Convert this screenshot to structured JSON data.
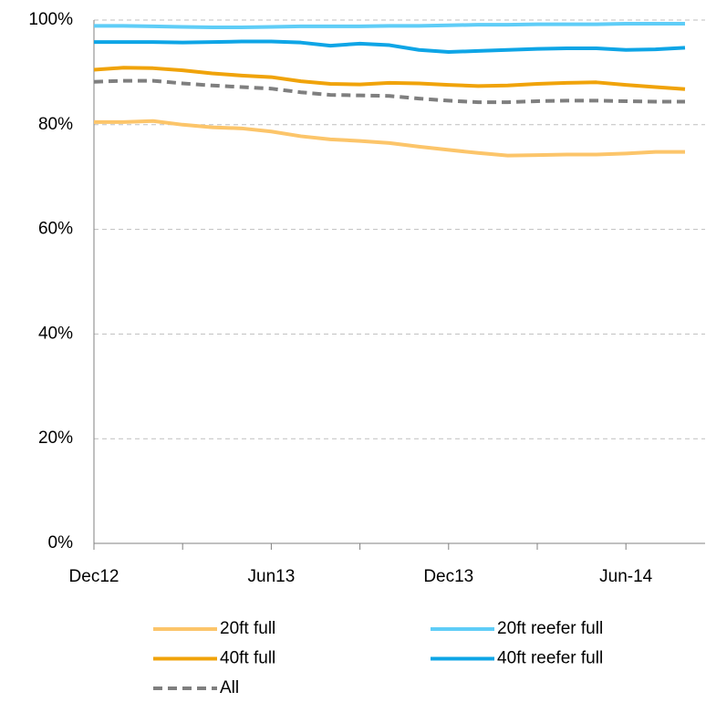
{
  "chart_data": {
    "type": "line",
    "categories": [
      "Dec12",
      null,
      null,
      null,
      null,
      null,
      "Jun13",
      null,
      null,
      null,
      null,
      null,
      "Dec13",
      null,
      null,
      null,
      null,
      null,
      "Jun-14",
      null,
      null
    ],
    "series": [
      {
        "name": "20ft full",
        "color": "#fcc56a",
        "dash": false,
        "values": [
          80.5,
          80.5,
          80.7,
          80,
          79.5,
          79.3,
          78.7,
          77.8,
          77.2,
          76.9,
          76.5,
          75.8,
          75.2,
          74.6,
          74.1,
          74.2,
          74.3,
          74.3,
          74.5,
          74.8,
          74.8
        ]
      },
      {
        "name": "20ft reefer full",
        "color": "#5fcdf7",
        "dash": false,
        "values": [
          98.9,
          98.9,
          98.8,
          98.7,
          98.6,
          98.6,
          98.7,
          98.8,
          98.8,
          98.8,
          98.9,
          98.9,
          99,
          99.1,
          99.1,
          99.2,
          99.2,
          99.2,
          99.3,
          99.3,
          99.3
        ]
      },
      {
        "name": "40ft full",
        "color": "#f0a30a",
        "dash": false,
        "values": [
          90.5,
          90.9,
          90.8,
          90.4,
          89.8,
          89.4,
          89.1,
          88.3,
          87.8,
          87.7,
          88,
          87.9,
          87.6,
          87.4,
          87.5,
          87.8,
          88,
          88.1,
          87.6,
          87.2,
          86.8
        ]
      },
      {
        "name": "40ft reefer full",
        "color": "#0ea5e6",
        "dash": false,
        "values": [
          95.8,
          95.8,
          95.8,
          95.7,
          95.8,
          95.9,
          95.9,
          95.7,
          95.1,
          95.5,
          95.2,
          94.3,
          93.9,
          94.1,
          94.3,
          94.5,
          94.6,
          94.6,
          94.3,
          94.4,
          94.7
        ]
      },
      {
        "name": "All",
        "color": "#7f7f7f",
        "dash": true,
        "values": [
          88.2,
          88.4,
          88.4,
          87.9,
          87.5,
          87.2,
          86.9,
          86.2,
          85.7,
          85.6,
          85.5,
          85,
          84.6,
          84.3,
          84.3,
          84.5,
          84.6,
          84.6,
          84.5,
          84.4,
          84.4
        ]
      }
    ],
    "ylim": [
      0,
      100
    ],
    "yticks": [
      {
        "value": 0,
        "label": "0%"
      },
      {
        "value": 20,
        "label": "20%"
      },
      {
        "value": 40,
        "label": "40%"
      },
      {
        "value": 60,
        "label": "60%"
      },
      {
        "value": 80,
        "label": "80%"
      },
      {
        "value": 100,
        "label": "100%"
      }
    ],
    "grid": true,
    "legend": "bottom"
  }
}
